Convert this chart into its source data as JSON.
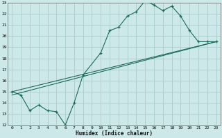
{
  "xlabel": "Humidex (Indice chaleur)",
  "bg_color": "#cce8e8",
  "grid_color": "#aacccc",
  "line_color": "#1a6b5a",
  "xlim": [
    -0.5,
    23.5
  ],
  "ylim": [
    12,
    23
  ],
  "xticks": [
    0,
    1,
    2,
    3,
    4,
    5,
    6,
    7,
    8,
    9,
    10,
    11,
    12,
    13,
    14,
    15,
    16,
    17,
    18,
    19,
    20,
    21,
    22,
    23
  ],
  "yticks": [
    12,
    13,
    14,
    15,
    16,
    17,
    18,
    19,
    20,
    21,
    22,
    23
  ],
  "line1_x": [
    0,
    1,
    2,
    3,
    4,
    5,
    6,
    7,
    8,
    10,
    11,
    12,
    13,
    14,
    15,
    16,
    17,
    18,
    19,
    20,
    21,
    22,
    23
  ],
  "line1_y": [
    15.0,
    14.7,
    13.3,
    13.8,
    13.3,
    13.2,
    12.0,
    14.0,
    16.5,
    18.5,
    20.5,
    20.8,
    21.8,
    22.2,
    23.2,
    22.8,
    22.3,
    22.7,
    21.8,
    20.5,
    19.5,
    19.5,
    19.5
  ],
  "line2_x": [
    0,
    23
  ],
  "line2_y": [
    15.0,
    19.5
  ],
  "line3_x": [
    0,
    23
  ],
  "line3_y": [
    14.7,
    19.5
  ]
}
